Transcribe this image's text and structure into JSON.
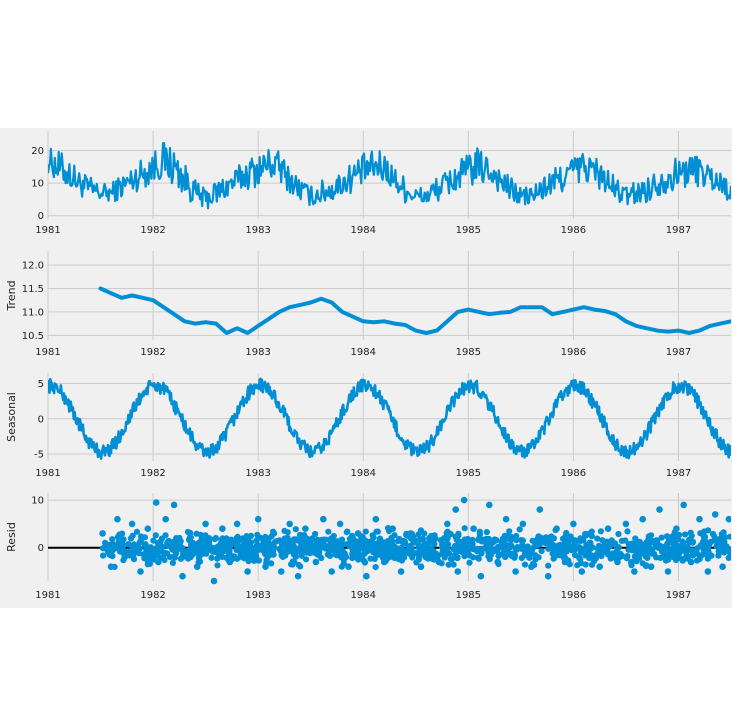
{
  "colors": {
    "series": "#008fd5",
    "panel_background": "#f0f0f0",
    "grid": "#cbcbcb",
    "zero_line": "#000000"
  },
  "chart_data": [
    {
      "type": "line",
      "panel": "observed",
      "ylabel": "",
      "xlim": [
        1981.0,
        1987.5
      ],
      "ylim": [
        -1,
        26
      ],
      "yticks": [
        0,
        10,
        20
      ],
      "xticks": [
        1981,
        1982,
        1983,
        1984,
        1985,
        1986,
        1987
      ],
      "xtick_labels": [
        "1981",
        "1982",
        "1983",
        "1984",
        "1985",
        "1986",
        "1987"
      ],
      "grid": true,
      "x": [
        1981.0,
        1981.1,
        1981.2,
        1981.3,
        1981.4,
        1981.5,
        1981.6,
        1981.7,
        1981.8,
        1981.9,
        1982.0,
        1982.1,
        1982.2,
        1982.3,
        1982.4,
        1982.5,
        1982.6,
        1982.7,
        1982.8,
        1982.9,
        1983.0,
        1983.1,
        1983.2,
        1983.3,
        1983.4,
        1983.5,
        1983.6,
        1983.7,
        1983.8,
        1983.9,
        1984.0,
        1984.1,
        1984.2,
        1984.3,
        1984.4,
        1984.5,
        1984.6,
        1984.7,
        1984.8,
        1984.9,
        1985.0,
        1985.1,
        1985.2,
        1985.3,
        1985.4,
        1985.5,
        1985.6,
        1985.7,
        1985.8,
        1985.9,
        1986.0,
        1986.1,
        1986.2,
        1986.3,
        1986.4,
        1986.5,
        1986.6,
        1986.7,
        1986.8,
        1986.9,
        1987.0,
        1987.1,
        1987.2,
        1987.3,
        1987.4,
        1987.5
      ],
      "values": [
        17,
        15,
        13,
        10,
        8,
        7,
        7,
        9,
        11,
        13,
        15,
        17,
        15,
        11,
        7,
        5,
        7,
        9,
        11,
        13,
        14,
        16,
        15,
        11,
        8,
        6,
        7,
        8,
        10,
        12,
        14,
        15,
        15,
        11,
        8,
        6,
        6,
        8,
        10,
        12,
        14,
        15,
        14,
        11,
        8,
        6,
        6,
        8,
        10,
        12,
        14,
        15,
        14,
        11,
        8,
        6,
        7,
        8,
        10,
        12,
        13,
        14,
        14,
        12,
        10,
        8
      ],
      "band": [
        4,
        5,
        5,
        4,
        4,
        3,
        3,
        4,
        4,
        5,
        5,
        6,
        6,
        5,
        4,
        3,
        4,
        4,
        4,
        5,
        5,
        5,
        5,
        4,
        4,
        3,
        4,
        4,
        4,
        5,
        5,
        5,
        5,
        4,
        4,
        3,
        3,
        4,
        4,
        5,
        5,
        6,
        5,
        4,
        4,
        3,
        3,
        4,
        4,
        5,
        5,
        5,
        5,
        4,
        4,
        3,
        4,
        4,
        4,
        5,
        5,
        5,
        5,
        4,
        4,
        4
      ]
    },
    {
      "type": "line",
      "panel": "trend",
      "ylabel": "Trend",
      "xlim": [
        1981.0,
        1987.5
      ],
      "ylim": [
        10.4,
        12.3
      ],
      "yticks": [
        10.5,
        11.0,
        11.5,
        12.0
      ],
      "ytick_labels": [
        "10.5",
        "11.0",
        "11.5",
        "12.0"
      ],
      "xticks": [
        1981,
        1982,
        1983,
        1984,
        1985,
        1986,
        1987
      ],
      "xtick_labels": [
        "1981",
        "1982",
        "1983",
        "1984",
        "1985",
        "1986",
        "1987"
      ],
      "grid": true,
      "x": [
        1981.5,
        1981.6,
        1981.7,
        1981.8,
        1981.9,
        1982.0,
        1982.1,
        1982.2,
        1982.3,
        1982.4,
        1982.5,
        1982.6,
        1982.7,
        1982.8,
        1982.9,
        1983.0,
        1983.1,
        1983.2,
        1983.3,
        1983.4,
        1983.5,
        1983.6,
        1983.7,
        1983.8,
        1983.9,
        1984.0,
        1984.1,
        1984.2,
        1984.3,
        1984.4,
        1984.5,
        1984.6,
        1984.7,
        1984.8,
        1984.9,
        1985.0,
        1985.1,
        1985.2,
        1985.3,
        1985.4,
        1985.5,
        1985.6,
        1985.7,
        1985.8,
        1985.9,
        1986.0,
        1986.1,
        1986.2,
        1986.3,
        1986.4,
        1986.5,
        1986.6,
        1986.7,
        1986.8,
        1986.9,
        1987.0,
        1987.1,
        1987.2,
        1987.3,
        1987.4,
        1987.5
      ],
      "values": [
        11.5,
        11.4,
        11.3,
        11.35,
        11.3,
        11.25,
        11.1,
        10.95,
        10.8,
        10.75,
        10.78,
        10.75,
        10.55,
        10.65,
        10.55,
        10.7,
        10.85,
        11.0,
        11.1,
        11.15,
        11.2,
        11.28,
        11.2,
        11.0,
        10.9,
        10.8,
        10.78,
        10.8,
        10.75,
        10.72,
        10.6,
        10.55,
        10.6,
        10.8,
        11.0,
        11.05,
        11.0,
        10.95,
        10.98,
        11.0,
        11.1,
        11.1,
        11.1,
        10.95,
        11.0,
        11.05,
        11.1,
        11.05,
        11.02,
        10.95,
        10.8,
        10.7,
        10.65,
        10.6,
        10.58,
        10.6,
        10.55,
        10.6,
        10.7,
        10.75,
        10.8
      ]
    },
    {
      "type": "line",
      "panel": "seasonal",
      "ylabel": "Seasonal",
      "xlim": [
        1981.0,
        1987.5
      ],
      "ylim": [
        -6,
        6.5
      ],
      "yticks": [
        -5,
        0,
        5
      ],
      "xticks": [
        1981,
        1982,
        1983,
        1984,
        1985,
        1986,
        1987
      ],
      "xtick_labels": [
        "1981",
        "1982",
        "1983",
        "1984",
        "1985",
        "1986",
        "1987"
      ],
      "grid": true,
      "period_years": 1,
      "amplitude": 4.7,
      "phase_peak_year_fraction": 0.02,
      "band": 1.0
    },
    {
      "type": "scatter",
      "panel": "resid",
      "ylabel": "Resid",
      "xlim": [
        1981.0,
        1987.5
      ],
      "ylim": [
        -7,
        11.5
      ],
      "yticks": [
        0,
        10
      ],
      "xticks": [
        1981,
        1982,
        1983,
        1984,
        1985,
        1986,
        1987
      ],
      "xtick_labels": [
        "1981",
        "1982",
        "1983",
        "1984",
        "1985",
        "1986",
        "1987"
      ],
      "grid": true,
      "zero_line": true,
      "x": [
        1981.52,
        1981.6,
        1981.66,
        1981.73,
        1981.8,
        1981.88,
        1981.95,
        1982.03,
        1982.05,
        1982.12,
        1982.2,
        1982.28,
        1982.35,
        1982.42,
        1982.5,
        1982.58,
        1982.66,
        1982.73,
        1982.8,
        1982.9,
        1983.0,
        1983.07,
        1983.15,
        1983.22,
        1983.3,
        1983.38,
        1983.45,
        1983.55,
        1983.62,
        1983.7,
        1983.78,
        1983.86,
        1983.95,
        1984.03,
        1984.12,
        1984.2,
        1984.28,
        1984.36,
        1984.45,
        1984.55,
        1984.63,
        1984.72,
        1984.8,
        1984.88,
        1984.9,
        1984.96,
        1985.05,
        1985.12,
        1985.2,
        1985.28,
        1985.36,
        1985.45,
        1985.52,
        1985.6,
        1985.68,
        1985.76,
        1985.84,
        1985.92,
        1986.0,
        1986.08,
        1986.16,
        1986.25,
        1986.33,
        1986.42,
        1986.5,
        1986.58,
        1986.66,
        1986.74,
        1986.82,
        1986.9,
        1986.98,
        1987.05,
        1987.12,
        1987.2,
        1987.28,
        1987.35,
        1987.42,
        1987.48
      ],
      "values": [
        3,
        -4,
        6,
        -2,
        5,
        -5,
        4,
        9.5,
        -3,
        6,
        9,
        -6,
        3,
        -4,
        5,
        -7,
        4,
        -3,
        5,
        -5,
        6,
        -4,
        3,
        -5,
        5,
        -6,
        4,
        -3,
        6,
        -5,
        5,
        -4,
        3,
        -6,
        6,
        -3,
        4,
        -5,
        3,
        -4,
        2,
        -3,
        5,
        8,
        -5,
        10,
        4,
        -6,
        9,
        -3,
        6,
        -5,
        5,
        -4,
        8,
        -6,
        4,
        -3,
        5,
        -5,
        3,
        -4,
        4,
        -3,
        5,
        -5,
        6,
        -4,
        8,
        -5,
        4,
        9,
        -3,
        6,
        -5,
        7,
        -4,
        6
      ]
    }
  ]
}
